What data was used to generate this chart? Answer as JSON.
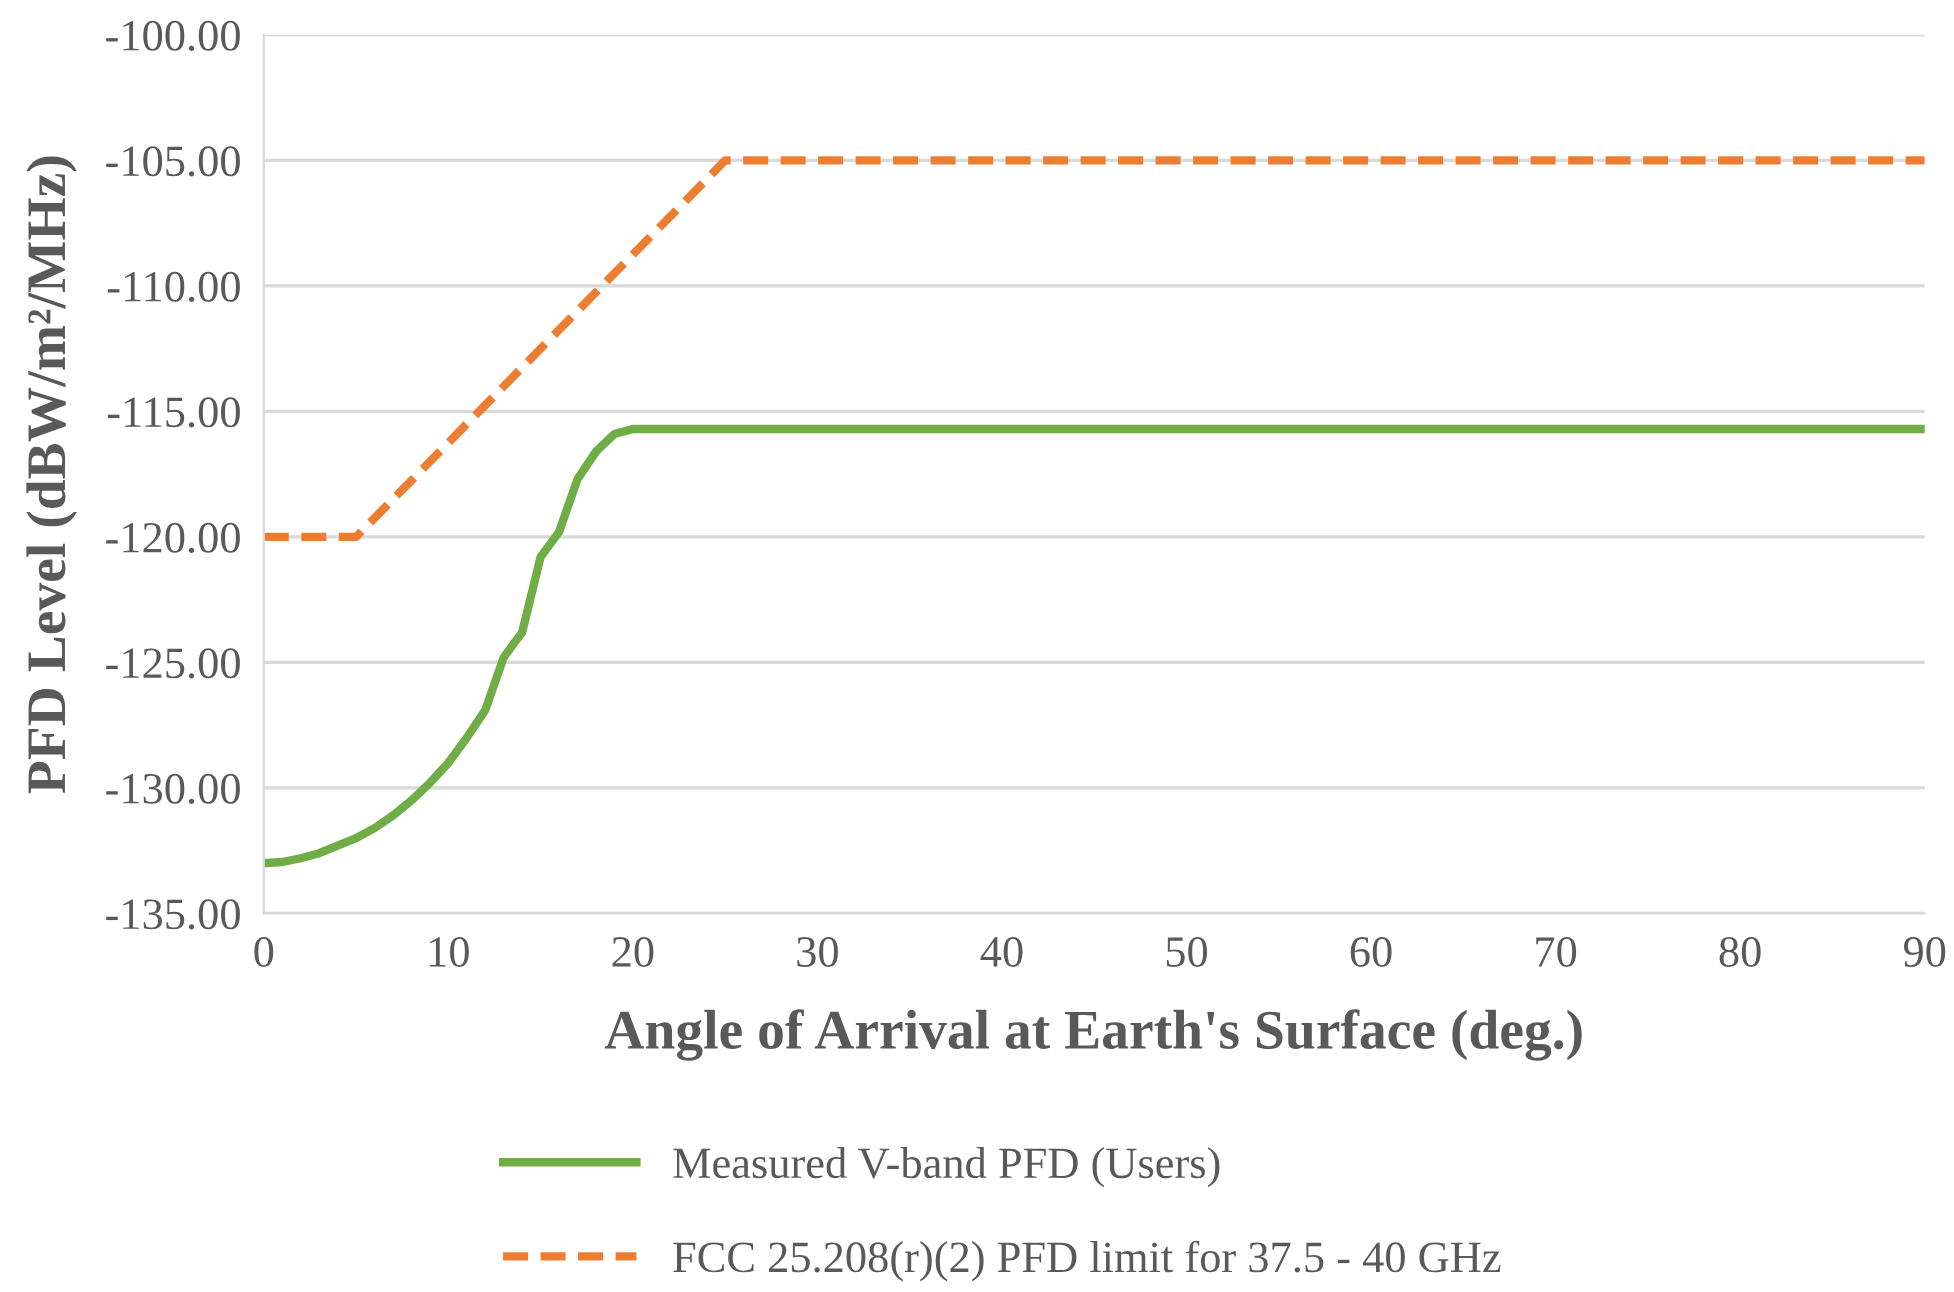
{
  "chart_data": {
    "type": "line",
    "xlabel": "Angle of Arrival at Earth's Surface (deg.)",
    "ylabel": "PFD Level (dBW/m²/MHz)",
    "xlim": [
      0,
      90
    ],
    "xticks": [
      0,
      10,
      20,
      30,
      40,
      50,
      60,
      70,
      80,
      90
    ],
    "ylim": [
      -135,
      -100
    ],
    "yticks": [
      {
        "value": -135,
        "label": "-135.00"
      },
      {
        "value": -130,
        "label": "-130.00"
      },
      {
        "value": -125,
        "label": "-125.00"
      },
      {
        "value": -120,
        "label": "-120.00"
      },
      {
        "value": -115,
        "label": "-115.00"
      },
      {
        "value": -110,
        "label": "-110.00"
      },
      {
        "value": -105,
        "label": "-105.00"
      },
      {
        "value": -100,
        "label": "-100.00"
      }
    ],
    "grid": "y",
    "legend": "bottom",
    "series": [
      {
        "name": "Measured V-band PFD (Users)",
        "color": "#70ad47",
        "line_style": "solid",
        "x": [
          0,
          1,
          2,
          3,
          4,
          5,
          6,
          7,
          8,
          9,
          10,
          11,
          12,
          13,
          14,
          15,
          16,
          17,
          18,
          19,
          20,
          90
        ],
        "values": [
          -133.0,
          -132.95,
          -132.8,
          -132.6,
          -132.3,
          -132.0,
          -131.6,
          -131.1,
          -130.5,
          -129.8,
          -129.0,
          -128.0,
          -126.9,
          -124.8,
          -123.8,
          -120.8,
          -119.8,
          -117.7,
          -116.6,
          -115.9,
          -115.7,
          -115.7
        ]
      },
      {
        "name": "FCC 25.208(r)(2) PFD limit for 37.5 - 40 GHz",
        "color": "#ed7d31",
        "line_style": "dashed",
        "x": [
          0,
          5,
          25,
          90
        ],
        "values": [
          -120,
          -120,
          -105,
          -105
        ]
      }
    ]
  }
}
